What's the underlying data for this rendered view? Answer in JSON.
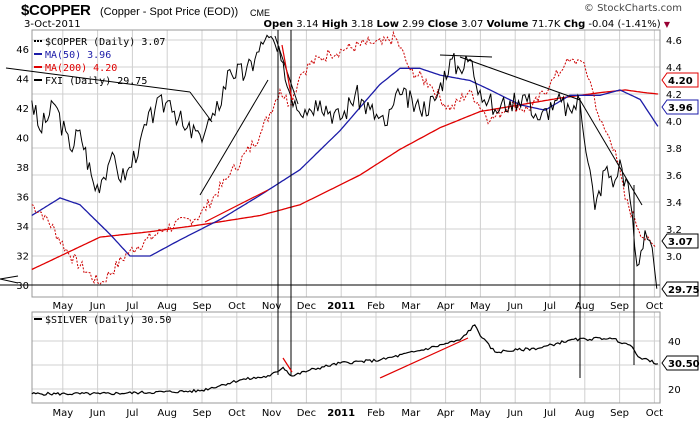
{
  "header": {
    "symbol": "$COPPER",
    "description": "(Copper - Spot Price (EOD))",
    "exchange": "CME",
    "credit": "© StockCharts.com",
    "date": "3-Oct-2011",
    "open_label": "Open",
    "open": "3.14",
    "high_label": "High",
    "high": "3.18",
    "low_label": "Low",
    "low": "2.99",
    "close_label": "Close",
    "close": "3.07",
    "volume_label": "Volume",
    "volume": "71.7K",
    "chg_label": "Chg",
    "chg": "-0.04 (-1.41%)"
  },
  "colors": {
    "copper": "#cc0000",
    "fxi": "#000000",
    "ma50": "#1c1ca8",
    "ma200": "#e00000",
    "grid": "#d0d0d0",
    "down": "#990033"
  },
  "chart_data": [
    {
      "type": "line",
      "title": "$COPPER (Daily)",
      "x_unit": "months since 1-Apr-2010",
      "x_ticks": [
        "May",
        "Jun",
        "Jul",
        "Aug",
        "Sep",
        "Oct",
        "Nov",
        "Dec",
        "2011",
        "Feb",
        "Mar",
        "Apr",
        "May",
        "Jun",
        "Jul",
        "Aug",
        "Sep",
        "Oct"
      ],
      "right_axis": {
        "ticks": [
          "4.6",
          "4.4",
          "4.2",
          "4.0",
          "3.8",
          "3.6",
          "3.4",
          "3.2",
          "3.0"
        ],
        "range": [
          2.78,
          4.68
        ]
      },
      "left_axis": {
        "ticks": [
          "46",
          "44",
          "42",
          "40",
          "38",
          "36",
          "34",
          "32",
          "30"
        ],
        "range": [
          29.5,
          47
        ]
      },
      "legend": [
        {
          "label": "$COPPER (Daily) 3.07",
          "style": "dotted"
        },
        {
          "label": "MA(50) 3.96",
          "style": "blue"
        },
        {
          "label": "MA(200) 4.20",
          "style": "red"
        },
        {
          "label": "FXI (Daily) 29.75",
          "style": "black"
        }
      ],
      "last_labels": {
        "ma200": "4.20",
        "ma50": "3.96",
        "copper": "3.07",
        "fxi": "29.75"
      },
      "series": [
        {
          "name": "$COPPER",
          "axis": "right",
          "points": [
            [
              0.11,
              3.38
            ],
            [
              0.49,
              3.3
            ],
            [
              1.21,
              3.0
            ],
            [
              2.07,
              2.79
            ],
            [
              2.93,
              3.04
            ],
            [
              3.94,
              3.2
            ],
            [
              4.94,
              3.3
            ],
            [
              5.8,
              3.6
            ],
            [
              6.67,
              3.9
            ],
            [
              7.24,
              4.23
            ],
            [
              7.53,
              4.12
            ],
            [
              7.82,
              4.34
            ],
            [
              8.1,
              4.42
            ],
            [
              8.68,
              4.5
            ],
            [
              9.11,
              4.53
            ],
            [
              9.83,
              4.58
            ],
            [
              10.17,
              4.57
            ],
            [
              10.55,
              4.62
            ],
            [
              10.98,
              4.38
            ],
            [
              11.55,
              4.27
            ],
            [
              12.13,
              4.08
            ],
            [
              12.7,
              4.23
            ],
            [
              13.28,
              4.0
            ],
            [
              13.85,
              4.12
            ],
            [
              14.43,
              4.08
            ],
            [
              15.0,
              4.27
            ],
            [
              15.43,
              4.42
            ],
            [
              15.86,
              4.45
            ],
            [
              16.15,
              4.3
            ],
            [
              16.44,
              4.0
            ],
            [
              16.87,
              3.79
            ],
            [
              17.16,
              3.42
            ],
            [
              17.44,
              3.27
            ],
            [
              17.73,
              3.12
            ],
            [
              18.02,
              3.07
            ]
          ]
        },
        {
          "name": "FXI",
          "axis": "left",
          "points": [
            [
              0.11,
              42.5
            ],
            [
              0.34,
              40.5
            ],
            [
              0.78,
              42.2
            ],
            [
              1.21,
              39.2
            ],
            [
              1.49,
              40.5
            ],
            [
              1.93,
              36.4
            ],
            [
              2.36,
              38.5
            ],
            [
              2.79,
              37.1
            ],
            [
              3.22,
              39.8
            ],
            [
              3.65,
              41.9
            ],
            [
              4.08,
              42.5
            ],
            [
              4.51,
              40.5
            ],
            [
              4.94,
              40.2
            ],
            [
              5.37,
              41.5
            ],
            [
              5.8,
              44.6
            ],
            [
              6.24,
              44.2
            ],
            [
              6.52,
              45.3
            ],
            [
              6.81,
              46.6
            ],
            [
              7.1,
              46.3
            ],
            [
              7.39,
              43.9
            ],
            [
              7.67,
              42.5
            ],
            [
              7.96,
              41.9
            ],
            [
              8.39,
              42.5
            ],
            [
              8.97,
              41.2
            ],
            [
              9.4,
              42.9
            ],
            [
              9.83,
              41.9
            ],
            [
              10.26,
              40.8
            ],
            [
              10.69,
              42.9
            ],
            [
              11.26,
              41.9
            ],
            [
              11.69,
              42.5
            ],
            [
              12.13,
              45.3
            ],
            [
              12.41,
              44.6
            ],
            [
              12.7,
              45.3
            ],
            [
              12.99,
              43.2
            ],
            [
              13.42,
              41.9
            ],
            [
              13.85,
              42.5
            ],
            [
              14.28,
              42.9
            ],
            [
              14.71,
              41.2
            ],
            [
              15.14,
              42.5
            ],
            [
              15.57,
              41.9
            ],
            [
              15.86,
              42.5
            ],
            [
              16.15,
              37.8
            ],
            [
              16.29,
              35.1
            ],
            [
              16.58,
              37.8
            ],
            [
              16.87,
              37.1
            ],
            [
              17.01,
              38.5
            ],
            [
              17.3,
              35.8
            ],
            [
              17.5,
              31.3
            ],
            [
              17.73,
              33.7
            ],
            [
              17.87,
              33.0
            ],
            [
              18.07,
              29.75
            ]
          ]
        },
        {
          "name": "MA(50)",
          "axis": "right",
          "points": [
            [
              0.11,
              3.3
            ],
            [
              0.92,
              3.43
            ],
            [
              1.49,
              3.38
            ],
            [
              2.36,
              3.16
            ],
            [
              2.93,
              3.0
            ],
            [
              3.51,
              3.0
            ],
            [
              4.37,
              3.12
            ],
            [
              5.52,
              3.27
            ],
            [
              6.67,
              3.45
            ],
            [
              7.82,
              3.64
            ],
            [
              8.97,
              3.93
            ],
            [
              10.11,
              4.27
            ],
            [
              10.69,
              4.39
            ],
            [
              11.26,
              4.39
            ],
            [
              11.84,
              4.34
            ],
            [
              12.7,
              4.3
            ],
            [
              13.28,
              4.23
            ],
            [
              14.14,
              4.12
            ],
            [
              14.86,
              4.08
            ],
            [
              15.57,
              4.19
            ],
            [
              16.44,
              4.19
            ],
            [
              17.01,
              4.23
            ],
            [
              17.59,
              4.16
            ],
            [
              18.1,
              3.96
            ]
          ]
        },
        {
          "name": "MA(200)",
          "axis": "right",
          "points": [
            [
              0.11,
              2.9
            ],
            [
              2.07,
              3.14
            ],
            [
              3.51,
              3.18
            ],
            [
              4.94,
              3.23
            ],
            [
              6.67,
              3.3
            ],
            [
              7.82,
              3.38
            ],
            [
              9.54,
              3.6
            ],
            [
              10.69,
              3.79
            ],
            [
              11.84,
              3.95
            ],
            [
              12.99,
              4.07
            ],
            [
              14.14,
              4.12
            ],
            [
              15.29,
              4.17
            ],
            [
              16.44,
              4.21
            ],
            [
              17.16,
              4.23
            ],
            [
              17.73,
              4.21
            ],
            [
              18.1,
              4.2
            ]
          ]
        }
      ]
    },
    {
      "type": "line",
      "title": "$SILVER (Daily)",
      "legend": [
        {
          "label": "$SILVER (Daily) 30.50"
        }
      ],
      "last_label": "30.50",
      "right_axis": {
        "ticks": [
          "40",
          "20"
        ],
        "range": [
          14.5,
          52
        ]
      },
      "series": [
        {
          "name": "$SILVER",
          "points": [
            [
              0.11,
              18
            ],
            [
              2.07,
              18
            ],
            [
              4.94,
              19.2
            ],
            [
              6.09,
              23.75
            ],
            [
              6.95,
              25.4
            ],
            [
              7.33,
              29
            ],
            [
              7.59,
              25.4
            ],
            [
              8.1,
              27.9
            ],
            [
              8.97,
              30.8
            ],
            [
              10.11,
              32
            ],
            [
              11.26,
              36
            ],
            [
              12.41,
              40.4
            ],
            [
              12.84,
              46.7
            ],
            [
              13.05,
              41.3
            ],
            [
              13.42,
              35.4
            ],
            [
              14.71,
              37.1
            ],
            [
              15.57,
              40.4
            ],
            [
              16.72,
              41.3
            ],
            [
              17.3,
              38.3
            ],
            [
              17.59,
              33
            ],
            [
              18.1,
              30.5
            ]
          ]
        }
      ]
    }
  ]
}
